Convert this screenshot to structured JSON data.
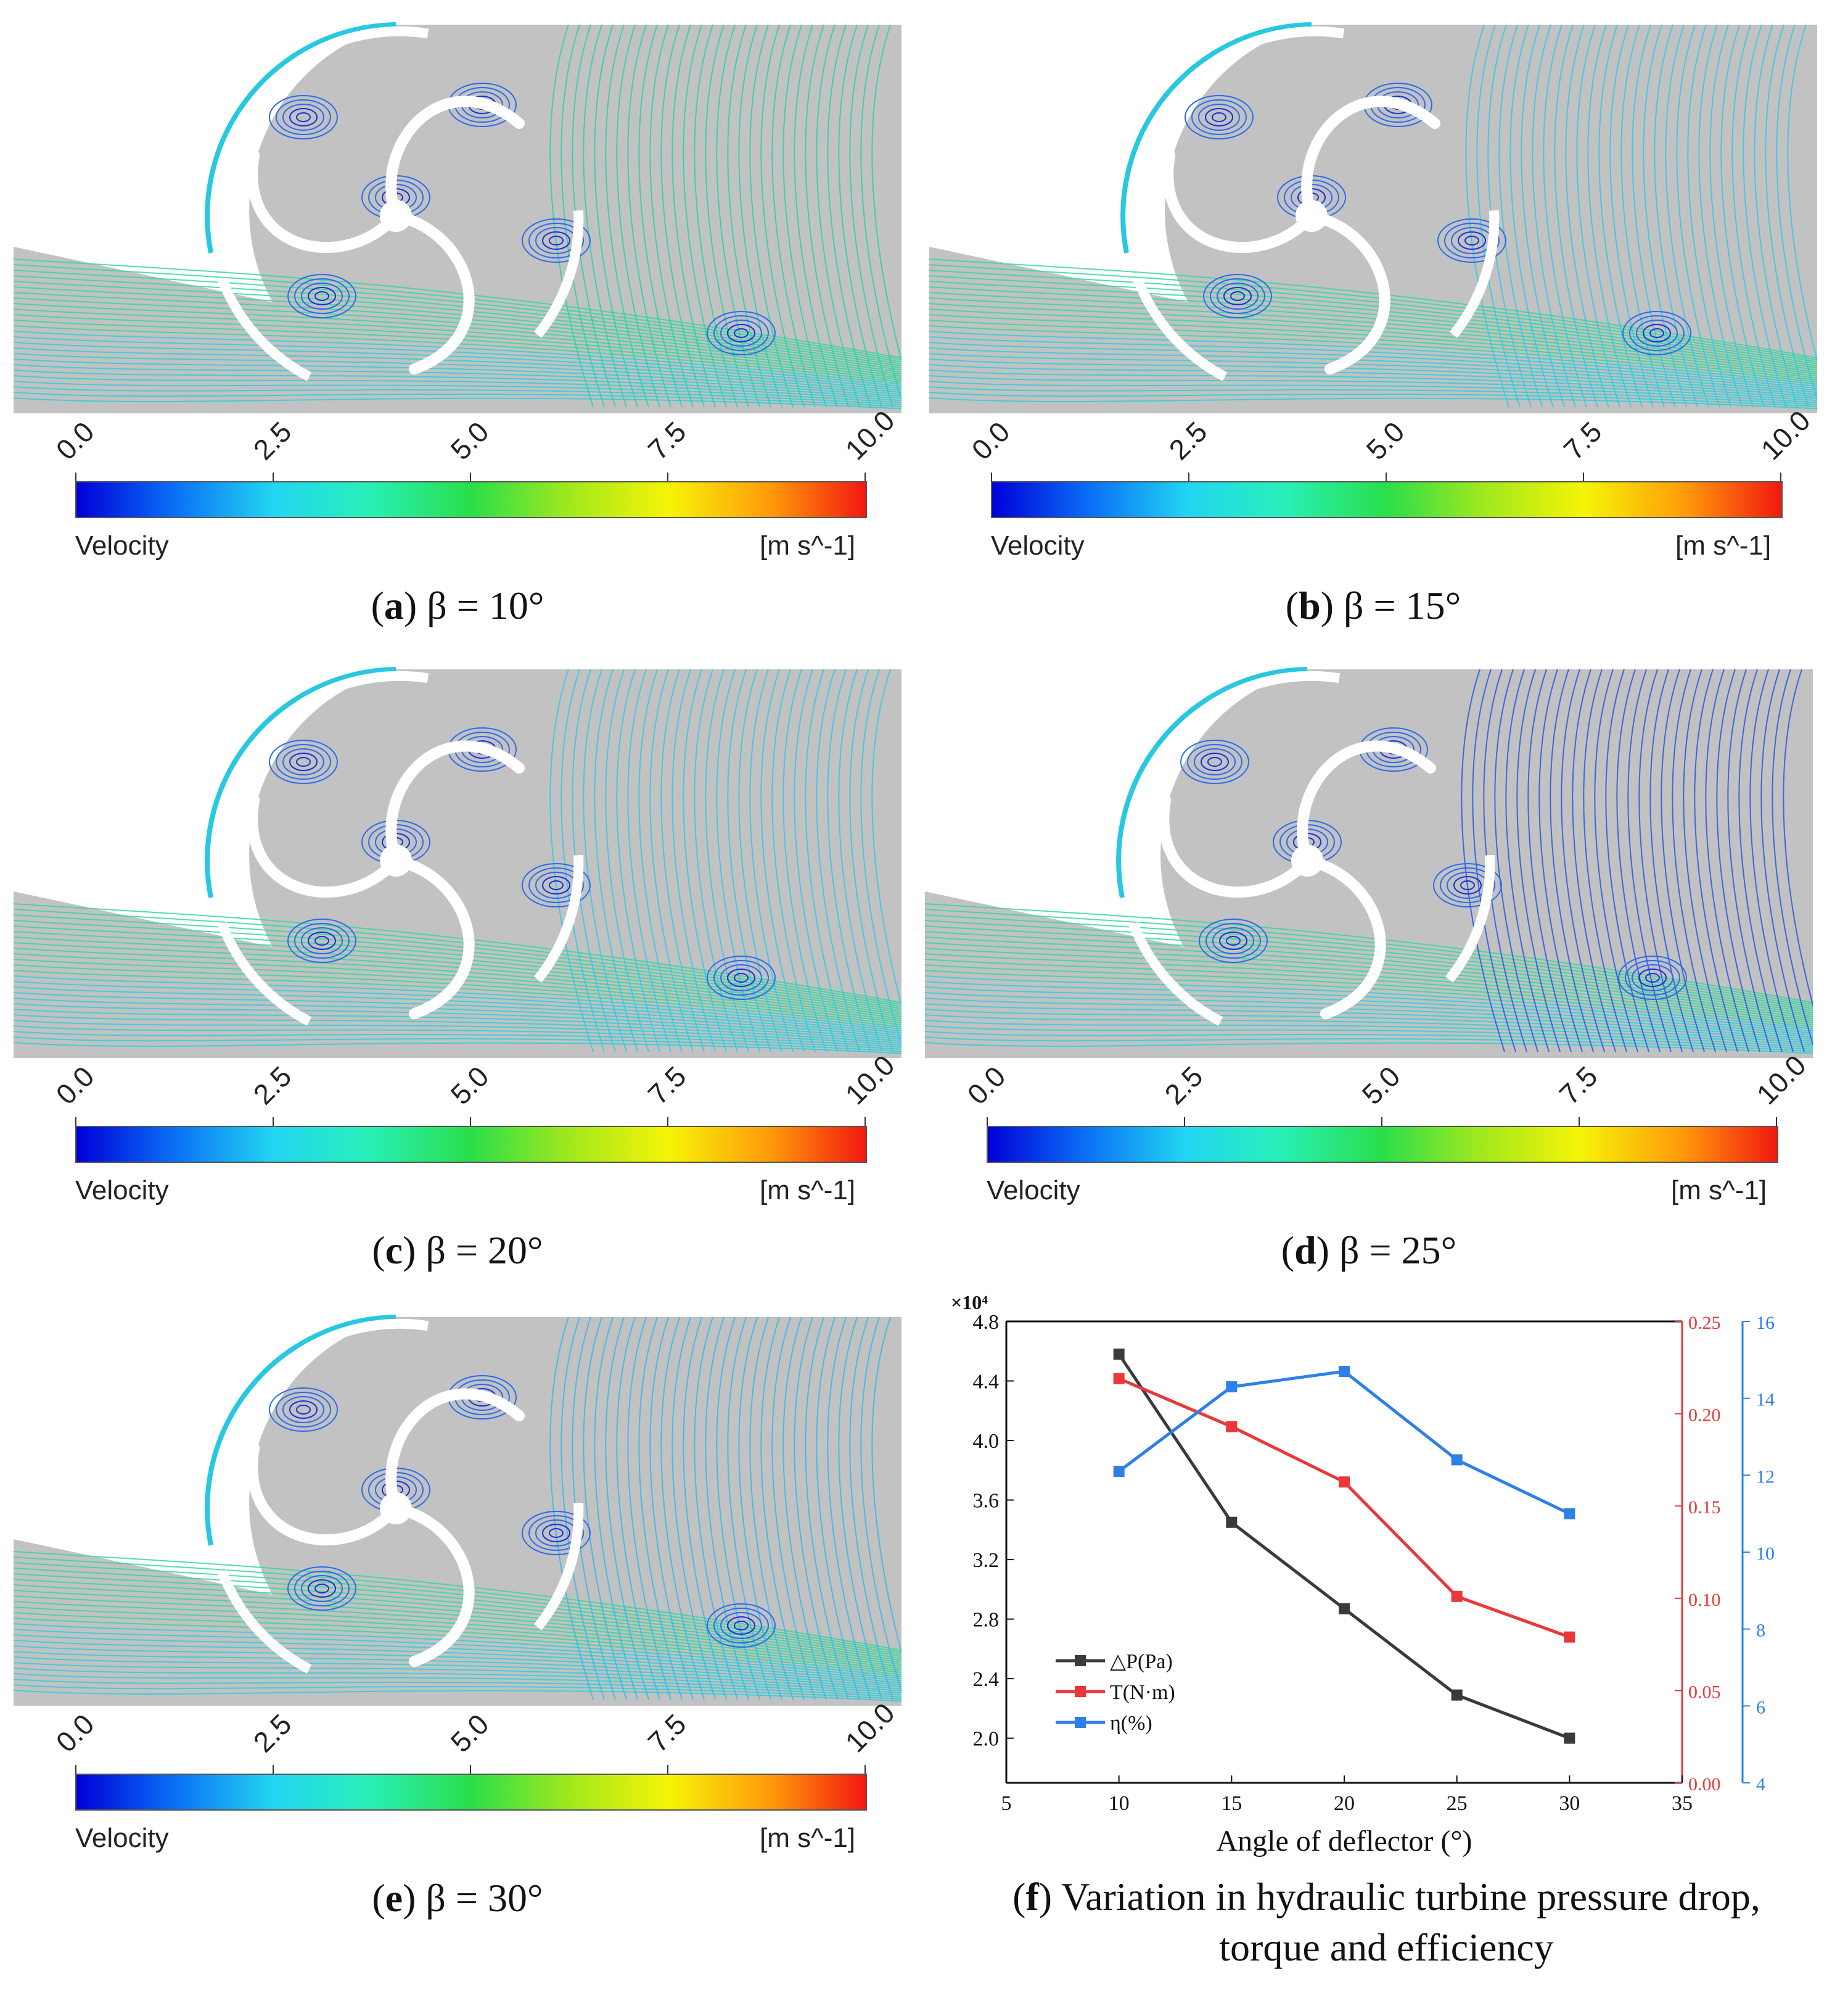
{
  "panels": [
    {
      "letter": "a",
      "label": "β = 10°"
    },
    {
      "letter": "b",
      "label": "β = 15°"
    },
    {
      "letter": "c",
      "label": "β = 20°"
    },
    {
      "letter": "d",
      "label": "β = 25°"
    },
    {
      "letter": "e",
      "label": "β = 30°"
    }
  ],
  "colorbar": {
    "ticks": [
      "0.0",
      "2.5",
      "5.0",
      "7.5",
      "10.0"
    ],
    "title": "Velocity",
    "unit": "[m s^-1]",
    "colors": [
      "#0000d8",
      "#0a6cf6",
      "#22d6f2",
      "#2ade4a",
      "#f6f406",
      "#ff9a0a",
      "#f21810"
    ]
  },
  "caption_f": {
    "letter": "f",
    "line1": "Variation in hydraulic turbine pressure drop,",
    "line2": "torque and efficiency"
  },
  "chart_data": {
    "type": "line",
    "xlabel": "Angle of deflector (°)",
    "x_ticks": [
      5,
      10,
      15,
      20,
      25,
      30,
      35
    ],
    "xlim": [
      5,
      35
    ],
    "left_axis": {
      "multiplier": "×10⁴",
      "ylim": [
        1.7,
        4.8
      ],
      "ticks": [
        "2.0",
        "2.4",
        "2.8",
        "3.2",
        "3.6",
        "4.0",
        "4.4",
        "4.8"
      ],
      "color": "#333333"
    },
    "right_axis_1": {
      "ylim": [
        0,
        0.25
      ],
      "ticks": [
        "0.00",
        "0.05",
        "0.10",
        "0.15",
        "0.20",
        "0.25"
      ],
      "color": "#e8383a"
    },
    "right_axis_2": {
      "ylim": [
        4,
        16
      ],
      "ticks": [
        "4",
        "6",
        "8",
        "10",
        "12",
        "14",
        "16"
      ],
      "color": "#2f7fe8"
    },
    "x": [
      10,
      15,
      20,
      25,
      30
    ],
    "series": [
      {
        "name": "△P(Pa)",
        "axis": "left",
        "color": "#3a3a3a",
        "values": [
          4.58,
          3.45,
          2.87,
          2.29,
          2.0
        ]
      },
      {
        "name": "T(N·m)",
        "axis": "right1",
        "color": "#e8383a",
        "values": [
          0.219,
          0.193,
          0.163,
          0.101,
          0.079
        ]
      },
      {
        "name": "η(%)",
        "axis": "right2",
        "color": "#2f7fe8",
        "values": [
          12.1,
          14.3,
          14.7,
          12.4,
          11.0
        ]
      }
    ],
    "legend_position": "bottom-left"
  }
}
